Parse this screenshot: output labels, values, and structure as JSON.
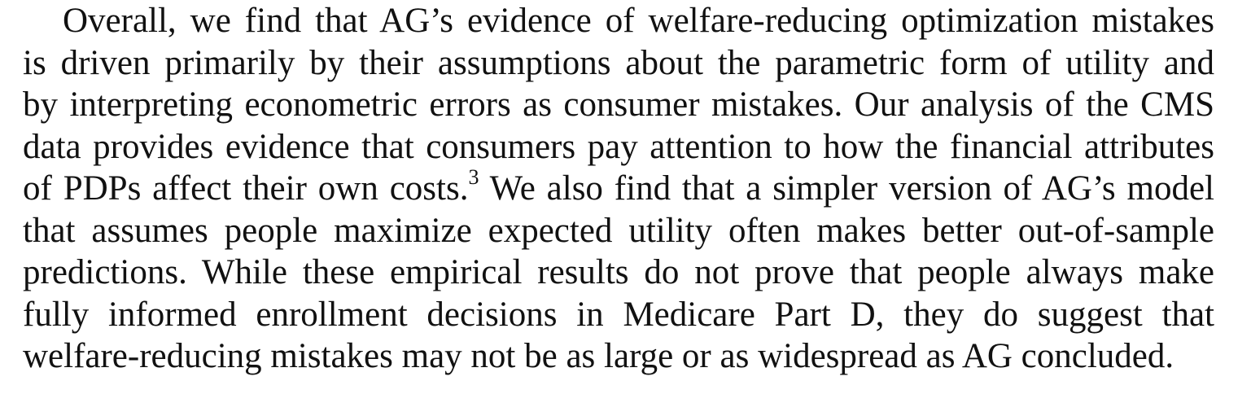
{
  "paragraph": {
    "line_1": "Overall, we find that AG’s evidence of welfare-reducing optimization mistakes",
    "line_2": "is driven primarily by their assumptions about the parametric form of utility and",
    "line_3": "by interpreting econometric errors as consumer mistakes. Our analysis of the CMS",
    "line_4": "data provides evidence that consumers pay attention to how the financial attributes",
    "line_5_before": "of PDPs affect their own costs.",
    "footnote_marker": "3",
    "line_5_after": " We also find that a simpler version of AG’s model",
    "line_6": "that assumes people maximize expected utility often makes better out-of-sample",
    "line_7": "predictions. While these empirical results do not prove that people always make",
    "line_8": "fully informed enrollment decisions in Medicare Part D, they do suggest that",
    "line_9": "welfare-reducing mistakes may not be as large or as widespread as AG concluded."
  }
}
